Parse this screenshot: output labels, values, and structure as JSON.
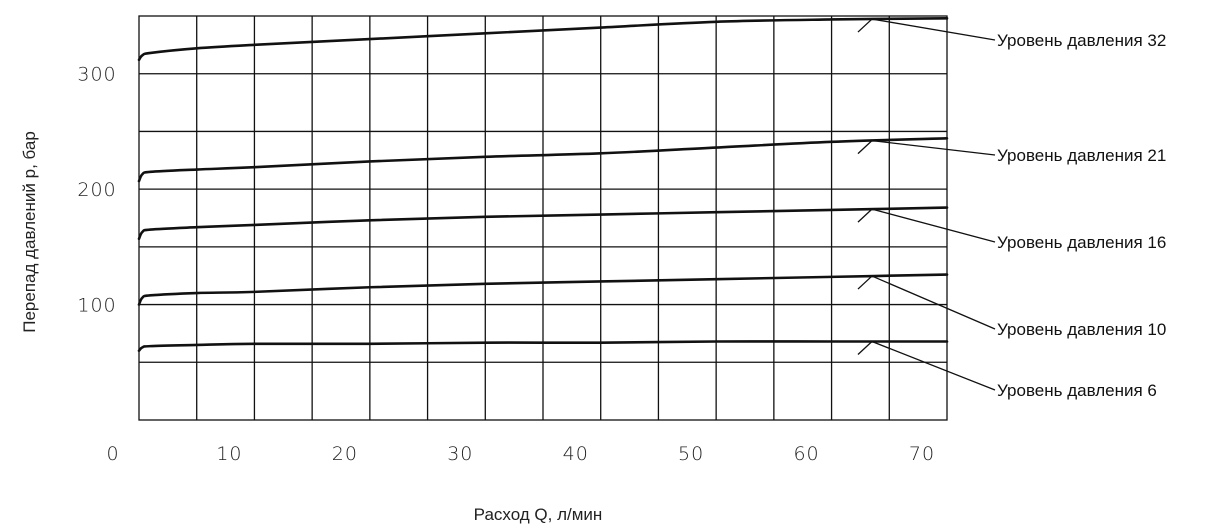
{
  "chart_data": {
    "type": "line",
    "title": "",
    "xlabel": "Расход Q, л/мин",
    "ylabel": "Перепад давлений  p, бар",
    "xlim": [
      0,
      70
    ],
    "ylim": [
      0,
      350
    ],
    "x_ticks": [
      0,
      10,
      20,
      30,
      40,
      50,
      60,
      70
    ],
    "y_ticks": [
      100,
      200,
      300
    ],
    "x_tick_labels": [
      "0",
      "10",
      "20",
      "30",
      "40",
      "50",
      "60",
      "70"
    ],
    "y_tick_labels": [
      "100",
      "200",
      "300"
    ],
    "grid": true,
    "x_grid_step": 5,
    "y_grid_step": 50,
    "series": [
      {
        "name": "Уровень давления 32",
        "x": [
          0,
          0.3,
          1,
          5,
          10,
          20,
          30,
          40,
          50,
          60,
          70
        ],
        "y": [
          312,
          316,
          318,
          322,
          325,
          330,
          335,
          340,
          345,
          347,
          348
        ]
      },
      {
        "name": "Уровень давления 21",
        "x": [
          0,
          0.3,
          1,
          5,
          10,
          20,
          30,
          40,
          50,
          60,
          70
        ],
        "y": [
          207,
          213,
          215,
          217,
          219,
          224,
          228,
          231,
          236,
          241,
          244
        ]
      },
      {
        "name": "Уровень давления 16",
        "x": [
          0,
          0.3,
          1,
          5,
          10,
          20,
          30,
          40,
          50,
          60,
          70
        ],
        "y": [
          157,
          163,
          165,
          167,
          169,
          173,
          176,
          178,
          180,
          182,
          184
        ]
      },
      {
        "name": "Уровень давления 10",
        "x": [
          0,
          0.3,
          1,
          5,
          10,
          20,
          30,
          40,
          50,
          60,
          70
        ],
        "y": [
          100,
          106,
          108,
          110,
          111,
          115,
          118,
          120,
          122,
          124,
          126
        ]
      },
      {
        "name": "Уровень давления 6",
        "x": [
          0,
          0.3,
          1,
          5,
          10,
          20,
          30,
          40,
          50,
          60,
          70
        ],
        "y": [
          60,
          63,
          64,
          65,
          66,
          66,
          67,
          67,
          68,
          68,
          68
        ]
      }
    ]
  }
}
